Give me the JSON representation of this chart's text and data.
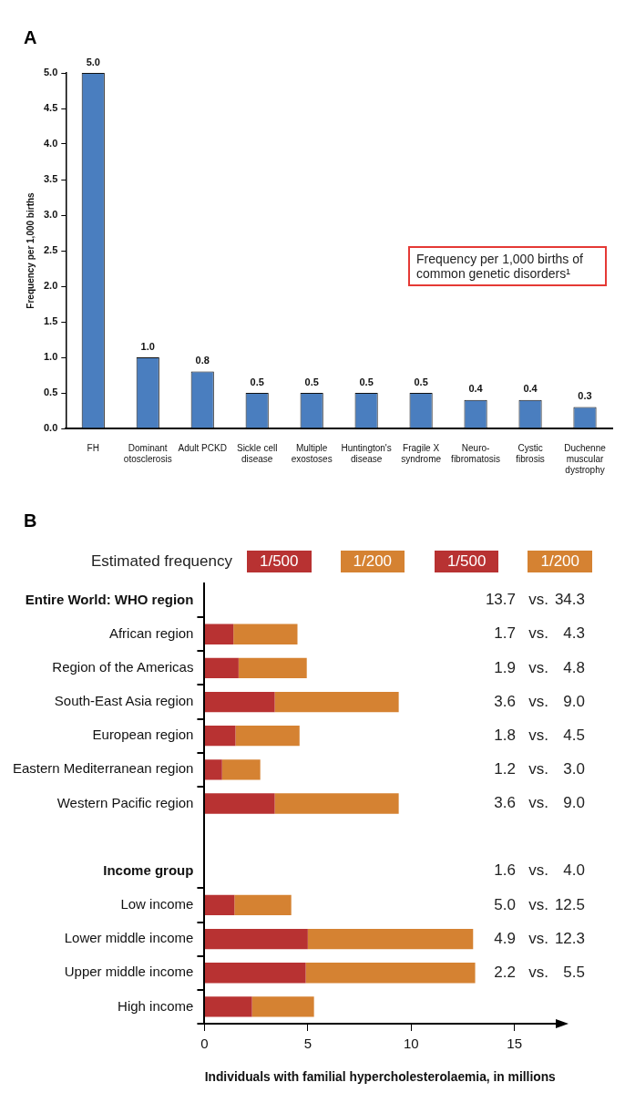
{
  "chart_data": [
    {
      "type": "bar",
      "title": "A",
      "ylabel": "Frequency per 1,000 births",
      "categories": [
        "FH",
        "Dominant otosclerosis",
        "Adult PCKD",
        "Sickle cell disease",
        "Multiple exostoses",
        "Huntington's disease",
        "Fragile X syndrome",
        "Neuro-fibromatosis",
        "Cystic fibrosis",
        "Duchenne muscular dystrophy"
      ],
      "values": [
        5.0,
        1.0,
        0.8,
        0.5,
        0.5,
        0.5,
        0.5,
        0.4,
        0.4,
        0.3
      ],
      "value_labels": [
        "5.0",
        "1.0",
        "0.8",
        "0.5",
        "0.5",
        "0.5",
        "0.5",
        "0.4",
        "0.4",
        "0.3"
      ],
      "color": "#4a7ebf",
      "ylim": [
        0,
        5
      ],
      "yticks": [
        {
          "value": 0,
          "label": "0.0"
        },
        0.5,
        {
          "value": 1,
          "label": "1.0"
        },
        1.5,
        {
          "value": 2,
          "label": "2.0"
        },
        2.5,
        {
          "value": 3,
          "label": "3.0"
        },
        3.5,
        {
          "value": 4,
          "label": "4.0"
        },
        4.5,
        {
          "value": 5,
          "label": "5.0"
        }
      ],
      "grid": false,
      "legend": false,
      "annotations": [
        "Frequency per 1,000 births of common genetic disorders¹"
      ]
    },
    {
      "type": "bar",
      "title": "B",
      "orientation": "horizontal",
      "stacked": true,
      "legend": "top",
      "legend_title": "Estimated frequency",
      "xlabel": "Individuals with familial hypercholesterolaemia, in millions",
      "categories": [
        "Entire World: WHO region",
        "African region",
        "Region of the Americas",
        "South-East Asia region",
        "European region",
        "Eastern Mediterranean region",
        "Western Pacific region",
        null,
        "Income group",
        "Low income",
        "Lower middle income",
        "Upper middle income",
        "High income"
      ],
      "series": [
        {
          "name": "1/500",
          "color": "#b83232",
          "values": [
            null,
            1.4,
            1.65,
            3.4,
            1.5,
            0.85,
            3.4,
            null,
            null,
            1.45,
            5.0,
            4.9,
            2.3
          ]
        },
        {
          "name": "1/200",
          "color": "#d58232",
          "values": [
            null,
            3.1,
            3.3,
            6.0,
            3.1,
            1.85,
            6.0,
            null,
            null,
            2.75,
            8.0,
            8.2,
            3.0
          ]
        }
      ],
      "xlim": [
        0,
        17
      ],
      "xticks": [
        0,
        5,
        10,
        15
      ],
      "grid": false,
      "annotations": [
        "13.7 vs. 34.3",
        "1.7 vs. 4.3",
        "1.9 vs. 4.8",
        "3.6 vs. 9.0",
        "1.8 vs. 4.5",
        "1.2 vs. 3.0",
        "3.6 vs. 9.0",
        "1.6 vs. 4.0",
        "5.0 vs. 12.5",
        "4.9 vs. 12.3",
        "2.2 vs. 5.5"
      ]
    }
  ]
}
